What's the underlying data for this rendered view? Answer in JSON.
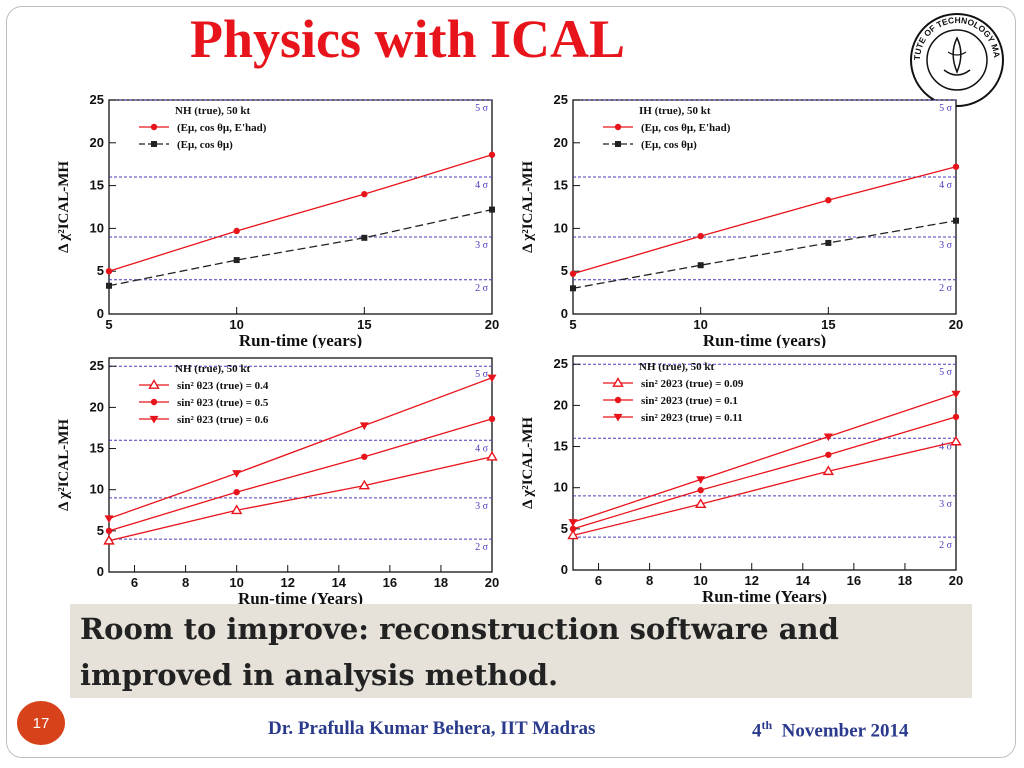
{
  "title": "Physics with ICAL",
  "logo": {
    "text": "INSTITUTE OF TECHNOLOGY MADRAS",
    "icon": "iit-madras-seal-icon"
  },
  "caption": {
    "line1": "Room to improve: reconstruction software and",
    "line2": "improved  in analysis method."
  },
  "footer": {
    "slide_number": "17",
    "author": "Dr. Prafulla Kumar Behera, IIT Madras",
    "date_sup": "th",
    "date_prefix": "4",
    "date_rest": "November 2014"
  },
  "colors": {
    "title": "#e8141b",
    "red_series": "#e8141b",
    "black_series": "#222222",
    "sigma_line": "#4b3dbb",
    "badge": "#d8421a",
    "footer_text": "#2a3a8c"
  },
  "chart_data": [
    {
      "type": "line",
      "xlabel": "Run-time (years)",
      "ylabel": "Δ χ²ICAL-MH",
      "xlim": [
        5,
        20
      ],
      "ylim": [
        0,
        25
      ],
      "xticks": [
        5,
        10,
        15,
        20
      ],
      "yticks": [
        0,
        5,
        10,
        15,
        20,
        25
      ],
      "legend_title": "NH (true), 50 kt",
      "sigma_lines": [
        {
          "label": "2 σ",
          "y": 4
        },
        {
          "label": "3 σ",
          "y": 9
        },
        {
          "label": "4 σ",
          "y": 16
        },
        {
          "label": "5 σ",
          "y": 25
        }
      ],
      "series": [
        {
          "name": "(Eμ, cos θμ, E'had)",
          "color": "#e8141b",
          "marker": "circle",
          "dash": false,
          "x": [
            5,
            10,
            15,
            20
          ],
          "values": [
            5.0,
            9.7,
            14.0,
            18.6
          ]
        },
        {
          "name": "(Eμ, cos θμ)",
          "color": "#222222",
          "marker": "square",
          "dash": true,
          "x": [
            5,
            10,
            15,
            20
          ],
          "values": [
            3.3,
            6.3,
            8.9,
            12.2
          ]
        }
      ]
    },
    {
      "type": "line",
      "xlabel": "Run-time (years)",
      "ylabel": "Δ χ²ICAL-MH",
      "xlim": [
        5,
        20
      ],
      "ylim": [
        0,
        25
      ],
      "xticks": [
        5,
        10,
        15,
        20
      ],
      "yticks": [
        0,
        5,
        10,
        15,
        20,
        25
      ],
      "legend_title": "IH (true), 50 kt",
      "sigma_lines": [
        {
          "label": "2 σ",
          "y": 4
        },
        {
          "label": "3 σ",
          "y": 9
        },
        {
          "label": "4 σ",
          "y": 16
        },
        {
          "label": "5 σ",
          "y": 25
        }
      ],
      "series": [
        {
          "name": "(Eμ, cos θμ, E'had)",
          "color": "#e8141b",
          "marker": "circle",
          "dash": false,
          "x": [
            5,
            10,
            15,
            20
          ],
          "values": [
            4.7,
            9.1,
            13.3,
            17.2
          ]
        },
        {
          "name": "(Eμ, cos θμ)",
          "color": "#222222",
          "marker": "square",
          "dash": true,
          "x": [
            5,
            10,
            15,
            20
          ],
          "values": [
            3.0,
            5.7,
            8.3,
            10.9
          ]
        }
      ]
    },
    {
      "type": "line",
      "xlabel": "Run-time (Years)",
      "ylabel": "Δ χ²ICAL-MH",
      "xlim": [
        5,
        20
      ],
      "ylim": [
        0,
        26
      ],
      "xticks": [
        6,
        8,
        10,
        12,
        14,
        16,
        18,
        20
      ],
      "yticks": [
        0,
        5,
        10,
        15,
        20,
        25
      ],
      "legend_title": "NH (true), 50 kt",
      "sigma_lines": [
        {
          "label": "2 σ",
          "y": 4
        },
        {
          "label": "3 σ",
          "y": 9
        },
        {
          "label": "4 σ",
          "y": 16
        },
        {
          "label": "5 σ",
          "y": 25
        }
      ],
      "series": [
        {
          "name": "sin² θ23 (true) = 0.4",
          "color": "#e8141b",
          "marker": "triangle-up",
          "dash": false,
          "x": [
            5,
            10,
            15,
            20
          ],
          "values": [
            3.8,
            7.5,
            10.5,
            14.0
          ]
        },
        {
          "name": "sin² θ23 (true) = 0.5",
          "color": "#e8141b",
          "marker": "circle",
          "dash": false,
          "x": [
            5,
            10,
            15,
            20
          ],
          "values": [
            5.0,
            9.7,
            14.0,
            18.6
          ]
        },
        {
          "name": "sin² θ23 (true) = 0.6",
          "color": "#e8141b",
          "marker": "triangle-down",
          "dash": false,
          "x": [
            5,
            10,
            15,
            20
          ],
          "values": [
            6.5,
            12.0,
            17.8,
            23.6
          ]
        }
      ]
    },
    {
      "type": "line",
      "xlabel": "Run-time (Years)",
      "ylabel": "Δ χ²ICAL-MH",
      "xlim": [
        5,
        20
      ],
      "ylim": [
        0,
        26
      ],
      "xticks": [
        6,
        8,
        10,
        12,
        14,
        16,
        18,
        20
      ],
      "yticks": [
        0,
        5,
        10,
        15,
        20,
        25
      ],
      "legend_title": "NH (true), 50 kt",
      "sigma_lines": [
        {
          "label": "2 σ",
          "y": 4
        },
        {
          "label": "3 σ",
          "y": 9
        },
        {
          "label": "4 σ",
          "y": 16
        },
        {
          "label": "5 σ",
          "y": 25
        }
      ],
      "series": [
        {
          "name": "sin² 2θ23 (true) = 0.09",
          "color": "#e8141b",
          "marker": "triangle-up",
          "dash": false,
          "x": [
            5,
            10,
            15,
            20
          ],
          "values": [
            4.2,
            8.0,
            12.0,
            15.6
          ]
        },
        {
          "name": "sin² 2θ23 (true) = 0.1",
          "color": "#e8141b",
          "marker": "circle",
          "dash": false,
          "x": [
            5,
            10,
            15,
            20
          ],
          "values": [
            5.0,
            9.7,
            14.0,
            18.6
          ]
        },
        {
          "name": "sin² 2θ23 (true) = 0.11",
          "color": "#e8141b",
          "marker": "triangle-down",
          "dash": false,
          "x": [
            5,
            10,
            15,
            20
          ],
          "values": [
            5.8,
            11.0,
            16.2,
            21.4
          ]
        }
      ]
    }
  ]
}
